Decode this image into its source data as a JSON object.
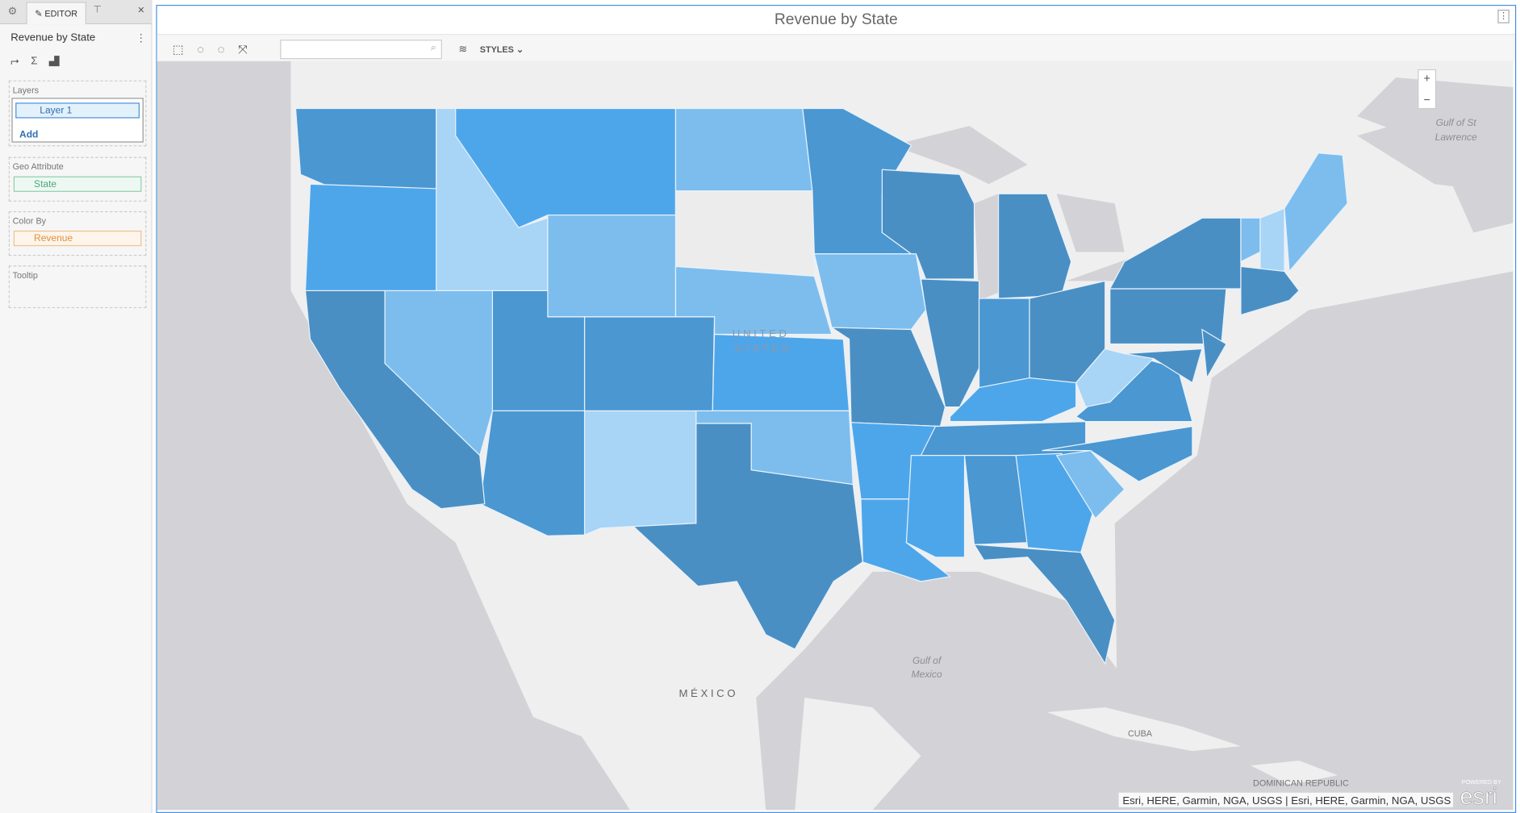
{
  "sidebar": {
    "tabs": {
      "editor": "EDITOR"
    },
    "title": "Revenue by State",
    "sections": {
      "layers": {
        "label": "Layers",
        "item": "Layer 1",
        "add": "Add"
      },
      "geo": {
        "label": "Geo Attribute",
        "item": "State"
      },
      "color": {
        "label": "Color By",
        "item": "Revenue"
      },
      "tooltip": {
        "label": "Tooltip"
      }
    }
  },
  "map": {
    "title": "Revenue by State",
    "styles": "STYLES",
    "zoom_in": "+",
    "zoom_out": "−",
    "labels": {
      "us1": "UNITED",
      "us2": "STATES",
      "mexico": "MÉXICO",
      "gulf1": "Gulf of",
      "gulf2": "Mexico",
      "stl1": "Gulf of St",
      "stl2": "Lawrence",
      "cuba": "CUBA",
      "dr": "DOMINICAN REPUBLIC"
    },
    "attribution": "Esri, HERE, Garmin, NGA, USGS | Esri, HERE, Garmin, NGA, USGS",
    "logo_small": "POWERED BY",
    "logo": "esri"
  }
}
